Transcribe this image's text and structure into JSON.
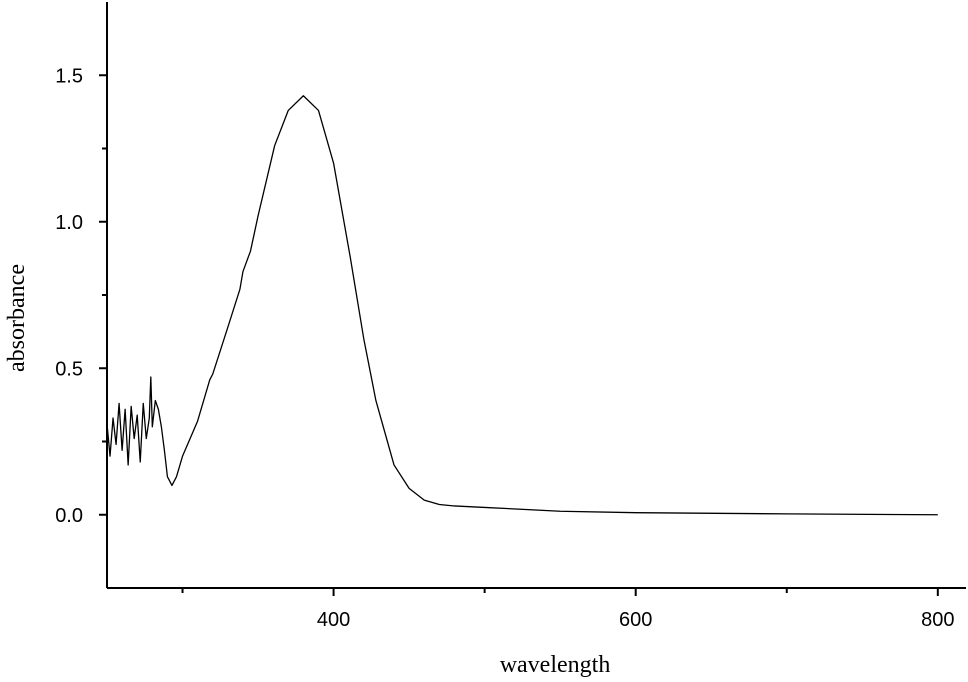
{
  "chart_data": {
    "type": "line",
    "x_label": "wavelength",
    "y_label": "absorbance",
    "xlim": [
      250,
      818
    ],
    "ylim": [
      -0.25,
      1.75
    ],
    "xticks": [
      400,
      600,
      800
    ],
    "xminorticks": [
      300,
      500,
      700
    ],
    "yticks": [
      {
        "value": 0,
        "label": "0.0"
      },
      0.5,
      {
        "value": 1,
        "label": "1.0"
      },
      1.5
    ],
    "yminorticks": [
      0.25,
      0.75,
      1.25
    ],
    "grid": false,
    "series": [
      {
        "name": "absorbance",
        "color": "#000000",
        "x": [
          250,
          252,
          254,
          256,
          258,
          260,
          262,
          264,
          266,
          268,
          270,
          272,
          274,
          276,
          278,
          279,
          280,
          282,
          284,
          286,
          288,
          290,
          293,
          296,
          300,
          305,
          310,
          318,
          320,
          330,
          338,
          340,
          345,
          350,
          361,
          370,
          380,
          390,
          400,
          411,
          420,
          428,
          440,
          450,
          460,
          470,
          480,
          500,
          550,
          600,
          700,
          800
        ],
        "values": [
          0.31,
          0.2,
          0.33,
          0.24,
          0.38,
          0.22,
          0.36,
          0.17,
          0.37,
          0.26,
          0.34,
          0.18,
          0.38,
          0.26,
          0.33,
          0.47,
          0.3,
          0.39,
          0.36,
          0.3,
          0.22,
          0.13,
          0.1,
          0.13,
          0.2,
          0.26,
          0.32,
          0.46,
          0.48,
          0.64,
          0.77,
          0.83,
          0.9,
          1.02,
          1.26,
          1.38,
          1.43,
          1.38,
          1.2,
          0.88,
          0.6,
          0.39,
          0.17,
          0.09,
          0.05,
          0.035,
          0.03,
          0.025,
          0.012,
          0.007,
          0.003,
          0.0
        ]
      }
    ]
  }
}
